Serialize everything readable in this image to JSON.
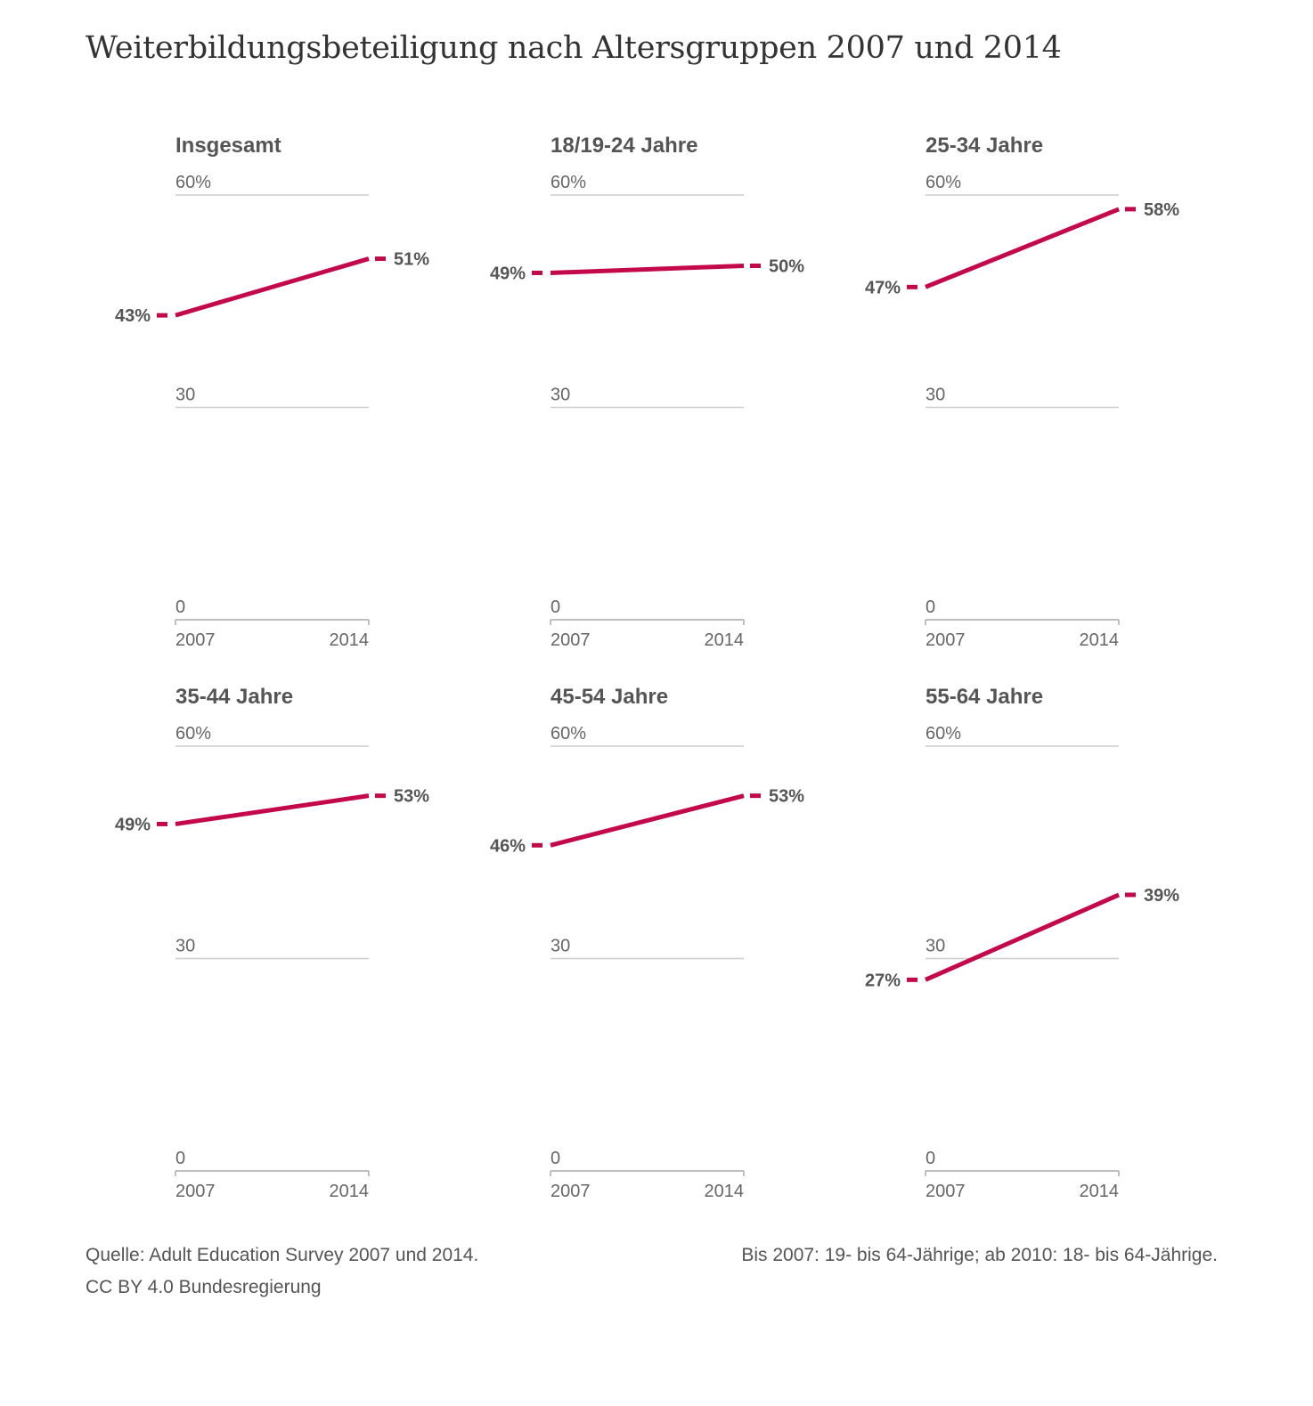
{
  "title": "Weiterbildungsbeteiligung nach Altersgruppen 2007 und 2014",
  "footer": {
    "source": "Quelle: Adult Education Survey 2007 und 2014.",
    "license": "CC BY 4.0 Bundesregierung",
    "note": "Bis 2007: 19- bis 64-Jährige; ab 2010: 18- bis 64-Jährige."
  },
  "colors": {
    "series": "#c4094b",
    "text": "#555555",
    "grid": "#cccccc"
  },
  "chart_data": [
    {
      "type": "line",
      "title": "Insgesamt",
      "x": [
        "2007",
        "2014"
      ],
      "values": [
        43,
        51
      ],
      "value_labels": [
        "43%",
        "51%"
      ],
      "y_ticks": [
        "0",
        "30",
        "60%"
      ],
      "ylim": [
        0,
        60
      ]
    },
    {
      "type": "line",
      "title": "18/19-24 Jahre",
      "x": [
        "2007",
        "2014"
      ],
      "values": [
        49,
        50
      ],
      "value_labels": [
        "49%",
        "50%"
      ],
      "y_ticks": [
        "0",
        "30",
        "60%"
      ],
      "ylim": [
        0,
        60
      ]
    },
    {
      "type": "line",
      "title": "25-34 Jahre",
      "x": [
        "2007",
        "2014"
      ],
      "values": [
        47,
        58
      ],
      "value_labels": [
        "47%",
        "58%"
      ],
      "y_ticks": [
        "0",
        "30",
        "60%"
      ],
      "ylim": [
        0,
        60
      ]
    },
    {
      "type": "line",
      "title": "35-44 Jahre",
      "x": [
        "2007",
        "2014"
      ],
      "values": [
        49,
        53
      ],
      "value_labels": [
        "49%",
        "53%"
      ],
      "y_ticks": [
        "0",
        "30",
        "60%"
      ],
      "ylim": [
        0,
        60
      ]
    },
    {
      "type": "line",
      "title": "45-54 Jahre",
      "x": [
        "2007",
        "2014"
      ],
      "values": [
        46,
        53
      ],
      "value_labels": [
        "46%",
        "53%"
      ],
      "y_ticks": [
        "0",
        "30",
        "60%"
      ],
      "ylim": [
        0,
        60
      ]
    },
    {
      "type": "line",
      "title": "55-64 Jahre",
      "x": [
        "2007",
        "2014"
      ],
      "values": [
        27,
        39
      ],
      "value_labels": [
        "27%",
        "39%"
      ],
      "y_ticks": [
        "0",
        "30",
        "60%"
      ],
      "ylim": [
        0,
        60
      ]
    }
  ]
}
